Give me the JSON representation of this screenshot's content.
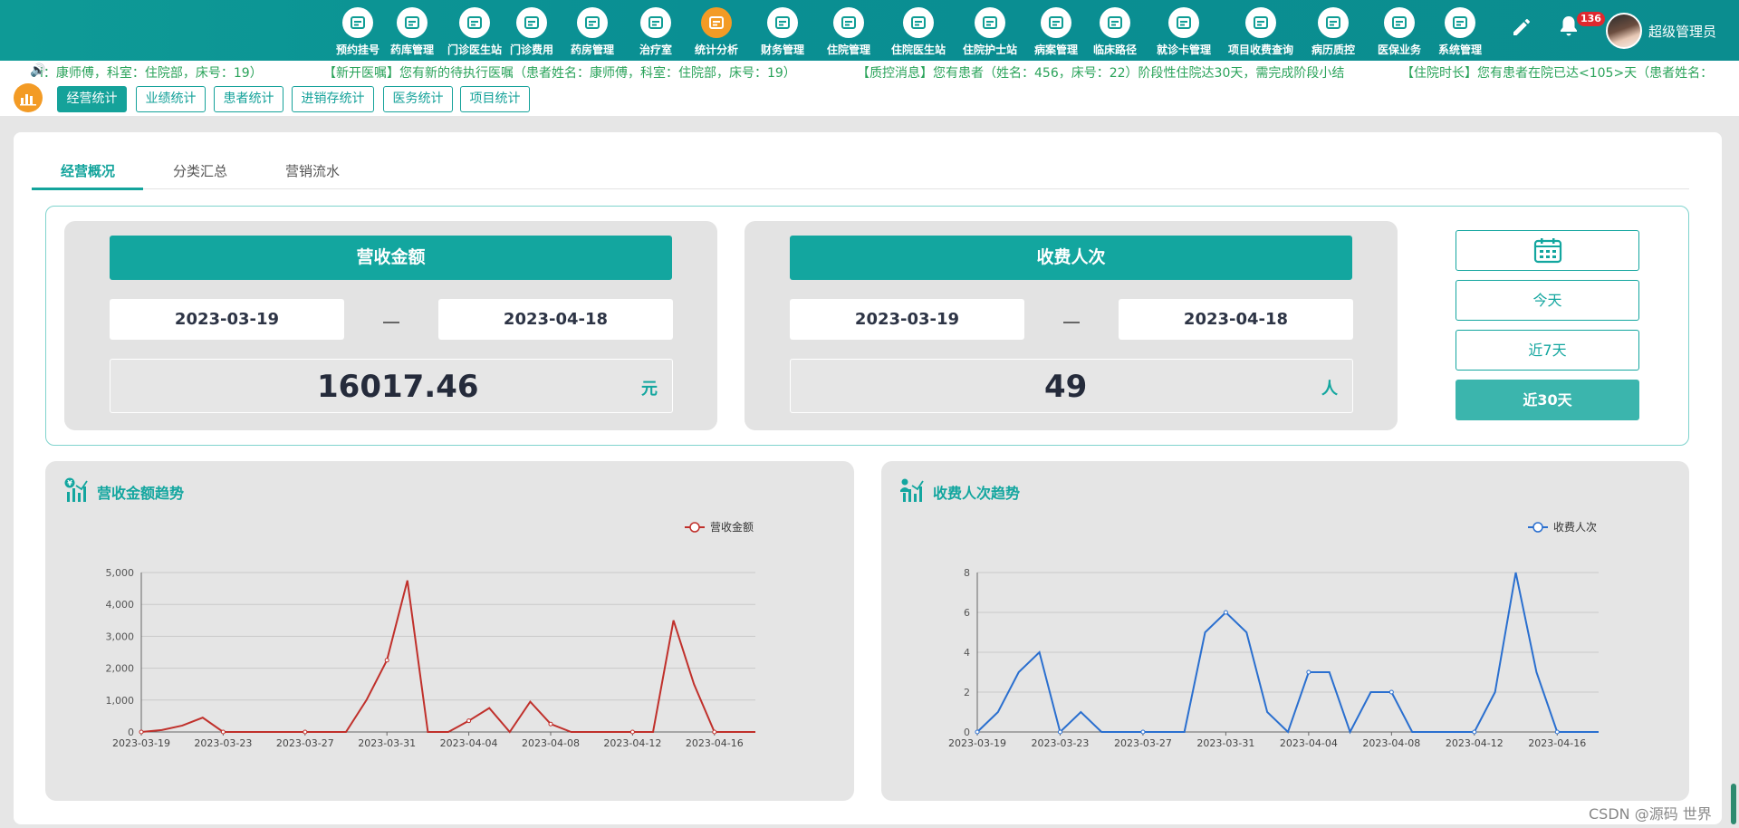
{
  "nav": {
    "items": [
      {
        "label": "预约挂号",
        "icon": "calendar-plus-icon"
      },
      {
        "label": "药库管理",
        "icon": "warehouse-icon"
      },
      {
        "label": "门诊医生站",
        "icon": "doctor-icon"
      },
      {
        "label": "门诊费用",
        "icon": "yuan-icon"
      },
      {
        "label": "药房管理",
        "icon": "pill-icon"
      },
      {
        "label": "治疗室",
        "icon": "nurse-icon"
      },
      {
        "label": "统计分析",
        "icon": "bar-chart-icon"
      },
      {
        "label": "财务管理",
        "icon": "gear-finance-icon"
      },
      {
        "label": "住院管理",
        "icon": "bed-icon"
      },
      {
        "label": "住院医生站",
        "icon": "inpatient-doctor-icon"
      },
      {
        "label": "住院护士站",
        "icon": "nurse-station-icon"
      },
      {
        "label": "病案管理",
        "icon": "record-icon"
      },
      {
        "label": "临床路径",
        "icon": "path-icon"
      },
      {
        "label": "就诊卡管理",
        "icon": "card-icon"
      },
      {
        "label": "项目收费查询",
        "icon": "search-document-icon"
      },
      {
        "label": "病历质控",
        "icon": "quality-control-icon"
      },
      {
        "label": "医保业务",
        "icon": "insurance-icon"
      },
      {
        "label": "系统管理",
        "icon": "settings-icon"
      }
    ],
    "active_index": 6,
    "notification_count": "136",
    "username": "超级管理员"
  },
  "marquee": [
    "i：康师傅，科室：住院部，床号：19）",
    "【新开医嘱】您有新的待执行医嘱（患者姓名：康师傅，科室：住院部，床号：19）",
    "【质控消息】您有患者（姓名：456，床号：22）阶段性住院达30天，需完成阶段小结",
    "【住院时长】您有患者在院已达<105>天（患者姓名："
  ],
  "subtabs": [
    "经营统计",
    "业绩统计",
    "患者统计",
    "进销存统计",
    "医务统计",
    "项目统计"
  ],
  "subtabs_active": 0,
  "tabs": [
    "经营概况",
    "分类汇总",
    "营销流水"
  ],
  "tabs_active": 0,
  "revenue": {
    "title": "营收金额",
    "start": "2023-03-19",
    "end": "2023-04-18",
    "value": "16017.46",
    "unit": "元"
  },
  "visits": {
    "title": "收费人次",
    "start": "2023-03-19",
    "end": "2023-04-18",
    "value": "49",
    "unit": "人"
  },
  "range_buttons": [
    "今天",
    "近7天",
    "近30天"
  ],
  "range_active": 2,
  "colors": {
    "accent": "#13a69f",
    "revenue_line": "#c0302b",
    "visits_line": "#2a6fcf",
    "active_nav": "#f39b25"
  },
  "chart_data": [
    {
      "type": "line",
      "title": "营收金额趋势",
      "series": [
        {
          "name": "营收金额",
          "values": [
            0,
            60,
            200,
            450,
            0,
            0,
            0,
            0,
            0,
            0,
            0,
            1000,
            2250,
            4750,
            0,
            0,
            350,
            750,
            0,
            950,
            250,
            0,
            0,
            0,
            0,
            0,
            3500,
            1500,
            0,
            0,
            0
          ]
        }
      ],
      "x": [
        "2023-03-19",
        "2023-03-20",
        "2023-03-21",
        "2023-03-22",
        "2023-03-23",
        "2023-03-24",
        "2023-03-25",
        "2023-03-26",
        "2023-03-27",
        "2023-03-28",
        "2023-03-29",
        "2023-03-30",
        "2023-03-31",
        "2023-04-01",
        "2023-04-02",
        "2023-04-03",
        "2023-04-04",
        "2023-04-05",
        "2023-04-06",
        "2023-04-07",
        "2023-04-08",
        "2023-04-09",
        "2023-04-10",
        "2023-04-11",
        "2023-04-12",
        "2023-04-13",
        "2023-04-14",
        "2023-04-15",
        "2023-04-16",
        "2023-04-17",
        "2023-04-18"
      ],
      "xticks": [
        "2023-03-19",
        "2023-03-23",
        "2023-03-27",
        "2023-03-31",
        "2023-04-04",
        "2023-04-08",
        "2023-04-12",
        "2023-04-16"
      ],
      "yticks": [
        "0",
        "1,000",
        "2,000",
        "3,000",
        "4,000",
        "5,000"
      ],
      "ylim": [
        0,
        5000
      ],
      "grid": true,
      "legend": "top-right"
    },
    {
      "type": "line",
      "title": "收费人次趋势",
      "series": [
        {
          "name": "收费人次",
          "values": [
            0,
            1,
            3,
            4,
            0,
            1,
            0,
            0,
            0,
            0,
            0,
            5,
            6,
            5,
            1,
            0,
            3,
            3,
            0,
            2,
            2,
            0,
            0,
            0,
            0,
            2,
            8,
            3,
            0,
            0,
            0
          ]
        }
      ],
      "x": [
        "2023-03-19",
        "2023-03-20",
        "2023-03-21",
        "2023-03-22",
        "2023-03-23",
        "2023-03-24",
        "2023-03-25",
        "2023-03-26",
        "2023-03-27",
        "2023-03-28",
        "2023-03-29",
        "2023-03-30",
        "2023-03-31",
        "2023-04-01",
        "2023-04-02",
        "2023-04-03",
        "2023-04-04",
        "2023-04-05",
        "2023-04-06",
        "2023-04-07",
        "2023-04-08",
        "2023-04-09",
        "2023-04-10",
        "2023-04-11",
        "2023-04-12",
        "2023-04-13",
        "2023-04-14",
        "2023-04-15",
        "2023-04-16",
        "2023-04-17",
        "2023-04-18"
      ],
      "xticks": [
        "2023-03-19",
        "2023-03-23",
        "2023-03-27",
        "2023-03-31",
        "2023-04-04",
        "2023-04-08",
        "2023-04-12",
        "2023-04-16"
      ],
      "yticks": [
        "0",
        "2",
        "4",
        "6",
        "8"
      ],
      "ylim": [
        0,
        8
      ],
      "grid": true,
      "legend": "top-right"
    }
  ],
  "watermark": "CSDN @源码 世界"
}
